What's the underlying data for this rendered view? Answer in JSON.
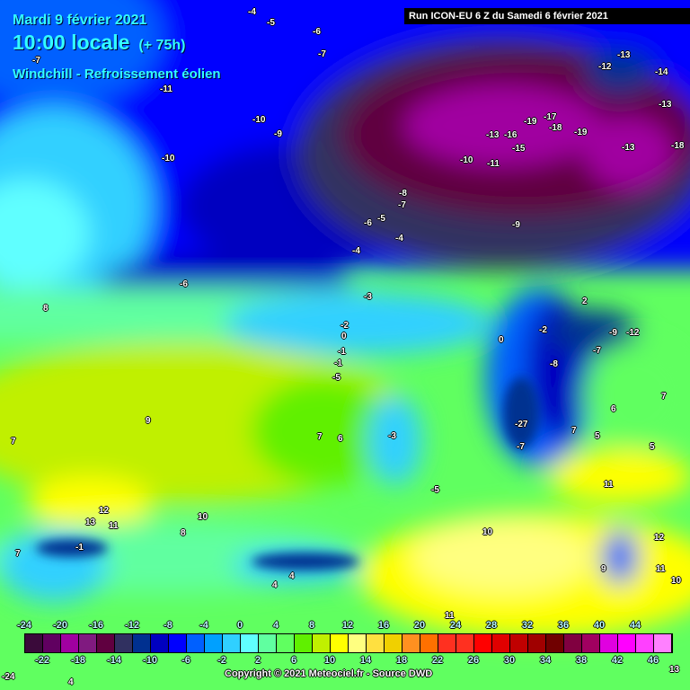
{
  "header": {
    "date": "Mardi 9 février 2021",
    "time": "10:00 locale",
    "lead": "(+ 75h)",
    "parameter": "Windchill - Refroissement éolien",
    "run": "Run ICON-EU 6 Z du Samedi 6 février 2021"
  },
  "map_labels": [
    "-4",
    "-5",
    "-6",
    "-7",
    "-7",
    "-11",
    "-10",
    "-9",
    "-10",
    "-13",
    "-12",
    "-14",
    "-13",
    "-19",
    "-17",
    "-18",
    "-13",
    "-16",
    "-19",
    "-13",
    "-15",
    "-18",
    "-10",
    "-11",
    "-8",
    "-7",
    "-6",
    "-5",
    "-4",
    "-9",
    "-4",
    "-6",
    "-3",
    "-2",
    "0",
    "-1",
    "-1",
    "-5",
    "8",
    "9",
    "7",
    "7",
    "6",
    "2",
    "-2",
    "0",
    "-8",
    "-7",
    "-9",
    "-12",
    "7",
    "6",
    "5",
    "5",
    "7",
    "11",
    "12",
    "13",
    "11",
    "10",
    "8",
    "-5",
    "10",
    "12",
    "11",
    "10",
    "9",
    "11",
    "7",
    "4",
    "4",
    "-1",
    "-24",
    "4",
    "13",
    "-3",
    "-27",
    "-7"
  ],
  "legend": {
    "colors": [
      "#3a0a3a",
      "#600060",
      "#a000a0",
      "#801a80",
      "#600040",
      "#303060",
      "#003090",
      "#0000c0",
      "#0000ff",
      "#0060ff",
      "#00a0ff",
      "#30d0ff",
      "#60ffff",
      "#60ffa0",
      "#60ff60",
      "#60f000",
      "#c0f000",
      "#ffff00",
      "#ffff80",
      "#ffe040",
      "#f0d000",
      "#ff9020",
      "#ff7000",
      "#ff3020",
      "#ff3020",
      "#ff0000",
      "#e00000",
      "#c00000",
      "#a00000",
      "#700000",
      "#800040",
      "#a00060",
      "#e000e0",
      "#ff00ff",
      "#ff40ff",
      "#ff80ff"
    ],
    "top_ticks": [
      "-24",
      "-20",
      "-16",
      "-12",
      "-8",
      "-4",
      "0",
      "4",
      "8",
      "12",
      "16",
      "20",
      "24",
      "28",
      "32",
      "36",
      "40",
      "44"
    ],
    "bottom_ticks": [
      "-22",
      "-18",
      "-14",
      "-10",
      "-6",
      "-2",
      "2",
      "6",
      "10",
      "14",
      "18",
      "22",
      "26",
      "30",
      "34",
      "38",
      "42",
      "46"
    ]
  },
  "copyright": "Copyright © 2021 Meteociel.fr - Source DWD"
}
